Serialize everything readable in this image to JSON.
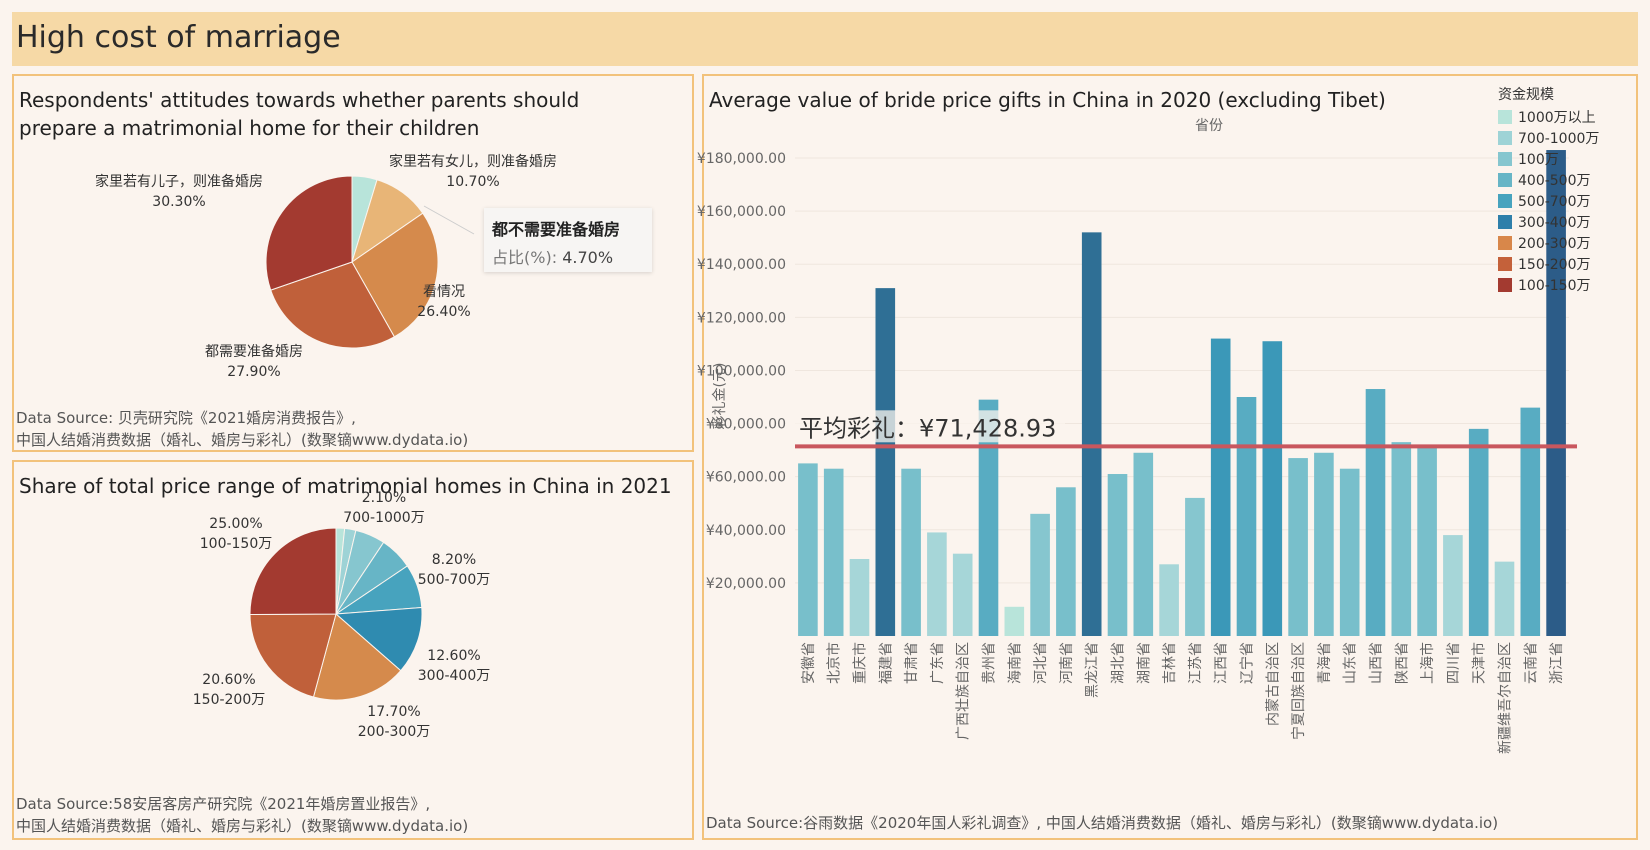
{
  "page": {
    "title": "High cost of marriage"
  },
  "panel_a": {
    "title": "Respondents' attitudes towards whether parents should prepare a matrimonial home for their children",
    "source_line1": "Data Source: 贝壳研究院《2021婚房消费报告》,",
    "source_line2": "中国人结婚消费数据（婚礼、婚房与彩礼）(数聚镝www.dydata.io)",
    "tooltip": {
      "name": "都不需要准备婚房",
      "key": "占比(%):",
      "value": "4.70%"
    }
  },
  "panel_b": {
    "title": "Share of total price range of matrimonial homes in China in 2021",
    "source_line1": "Data Source:58安居客房产研究院《2021年婚房置业报告》,",
    "source_line2": "中国人结婚消费数据（婚礼、婚房与彩礼）(数聚镝www.dydata.io)"
  },
  "panel_c": {
    "title": "Average value of bride price gifts in China in 2020 (excluding Tibet)",
    "source": "Data Source:谷雨数据《2020年国人彩礼调查》, 中国人结婚消费数据（婚礼、婚房与彩礼）(数聚镝www.dydata.io)",
    "average_label": "平均彩礼：¥71,428.93",
    "legend_title": "资金规模",
    "legend": [
      {
        "label": "1000万以上",
        "color": "#b8e4da"
      },
      {
        "label": "700-1000万",
        "color": "#9ed3d6"
      },
      {
        "label": "100万",
        "color": "#86c6cf"
      },
      {
        "label": "400-500万",
        "color": "#67b5c6"
      },
      {
        "label": "500-700万",
        "color": "#47a3be"
      },
      {
        "label": "300-400万",
        "color": "#2e7faa"
      },
      {
        "label": "200-300万",
        "color": "#d8874a"
      },
      {
        "label": "150-200万",
        "color": "#c4613a"
      },
      {
        "label": "100-150万",
        "color": "#a33a30"
      }
    ]
  },
  "chart_data": [
    {
      "type": "pie",
      "title": "Respondents' attitudes towards whether parents should prepare a matrimonial home for their children",
      "slices": [
        {
          "label": "都不需要准备婚房",
          "value": 4.7,
          "color": "#b8e4da"
        },
        {
          "label": "家里若有女儿，则准备婚房",
          "value": 10.7,
          "display": "10.70%",
          "color": "#e8b577"
        },
        {
          "label": "看情况",
          "value": 26.4,
          "display": "26.40%",
          "color": "#d58a4c"
        },
        {
          "label": "都需要准备婚房",
          "value": 27.9,
          "display": "27.90%",
          "color": "#c0603a"
        },
        {
          "label": "家里若有儿子，则准备婚房",
          "value": 30.3,
          "display": "30.30%",
          "color": "#a33a30"
        }
      ]
    },
    {
      "type": "pie",
      "title": "Share of total price range of matrimonial homes in China in 2021",
      "slices": [
        {
          "label": "1000万以上",
          "value": 1.6,
          "color": "#b8e4da"
        },
        {
          "label": "700-1000万",
          "value": 2.1,
          "display": "2.10%",
          "color": "#9ed3d6"
        },
        {
          "label": "100万",
          "value": 5.6,
          "color": "#86c6cf"
        },
        {
          "label": "400-500万",
          "value": 6.2,
          "color": "#67b5c6"
        },
        {
          "label": "500-700万",
          "value": 8.2,
          "display": "8.20%",
          "color": "#47a3be"
        },
        {
          "label": "300-400万",
          "value": 12.6,
          "display": "12.60%",
          "color": "#2f8bb0"
        },
        {
          "label": "200-300万",
          "value": 17.7,
          "display": "17.70%",
          "color": "#d58a4c"
        },
        {
          "label": "150-200万",
          "value": 20.6,
          "display": "20.60%",
          "color": "#c0603a"
        },
        {
          "label": "100-150万",
          "value": 25.0,
          "display": "25.00%",
          "color": "#a33a30"
        }
      ]
    },
    {
      "type": "bar",
      "title": "Average value of bride price gifts in China in 2020 (excluding Tibet)",
      "xlabel": "省份",
      "ylabel": "彩礼金(元)",
      "ylim": [
        0,
        180000
      ],
      "yticks": [
        20000,
        40000,
        60000,
        80000,
        100000,
        120000,
        140000,
        160000,
        180000
      ],
      "ytick_labels": [
        "¥20,000.00",
        "¥40,000.00",
        "¥60,000.00",
        "¥80,000.00",
        "¥100,000.00",
        "¥120,000.00",
        "¥140,000.00",
        "¥160,000.00",
        "¥180,000.00"
      ],
      "average": 71428.93,
      "categories": [
        "安徽省",
        "北京市",
        "重庆市",
        "福建省",
        "甘肃省",
        "广东省",
        "广西壮族自治区",
        "贵州省",
        "海南省",
        "河北省",
        "河南省",
        "黑龙江省",
        "湖北省",
        "湖南省",
        "吉林省",
        "江苏省",
        "江西省",
        "辽宁省",
        "内蒙古自治区",
        "宁夏回族自治区",
        "青海省",
        "山东省",
        "山西省",
        "陕西省",
        "上海市",
        "四川省",
        "天津市",
        "新疆维吾尔自治区",
        "云南省",
        "浙江省"
      ],
      "values": [
        65000,
        63000,
        29000,
        131000,
        63000,
        39000,
        31000,
        89000,
        11000,
        46000,
        56000,
        152000,
        61000,
        69000,
        27000,
        52000,
        112000,
        90000,
        111000,
        67000,
        69000,
        63000,
        93000,
        73000,
        72000,
        38000,
        78000,
        28000,
        86000,
        183000
      ],
      "colors": [
        "#78bfcb",
        "#78bfcb",
        "#a6d6d8",
        "#2f6f95",
        "#78bfcb",
        "#a6d6d8",
        "#a6d6d8",
        "#58acc2",
        "#b8e4da",
        "#86c6cf",
        "#78bfcb",
        "#2f6f95",
        "#78bfcb",
        "#78bfcb",
        "#a6d6d8",
        "#86c6cf",
        "#3b98b8",
        "#58acc2",
        "#3b98b8",
        "#78bfcb",
        "#78bfcb",
        "#78bfcb",
        "#58acc2",
        "#78bfcb",
        "#78bfcb",
        "#a6d6d8",
        "#58acc2",
        "#a6d6d8",
        "#58acc2",
        "#2c5c88"
      ]
    }
  ]
}
